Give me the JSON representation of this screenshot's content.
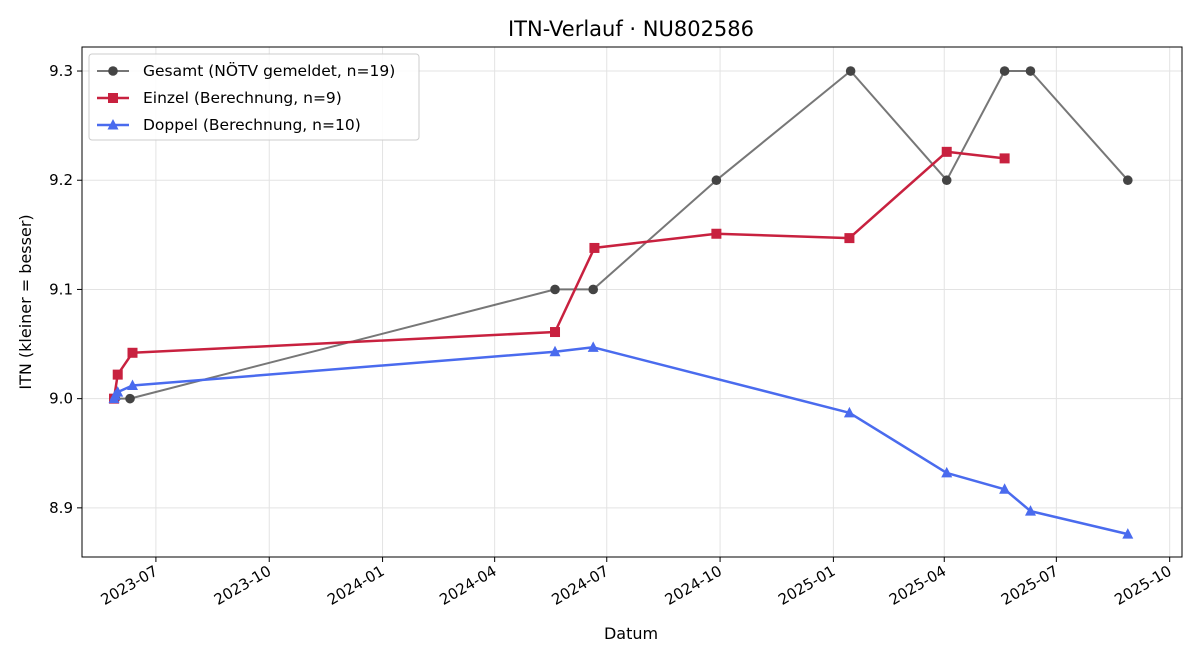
{
  "chart_data": {
    "type": "line",
    "title": "ITN-Verlauf · NU802586",
    "xlabel": "Datum",
    "ylabel": "ITN  (kleiner = besser)",
    "xlim": [
      "2023-05-02",
      "2025-10-11"
    ],
    "ylim": [
      8.855,
      9.322
    ],
    "x_ticks": [
      "2023-07",
      "2023-10",
      "2024-01",
      "2024-04",
      "2024-07",
      "2024-10",
      "2025-01",
      "2025-04",
      "2025-07",
      "2025-10"
    ],
    "y_ticks": [
      8.9,
      9.0,
      9.1,
      9.2,
      9.3
    ],
    "grid": true,
    "legend_position": "top-left",
    "series": [
      {
        "name": "Gesamt (NÖTV gemeldet, n=19)",
        "color": "#555555",
        "marker": "circle",
        "x": [
          "2023-05-28",
          "2023-05-29",
          "2023-06-10",
          "2024-05-20",
          "2024-06-20",
          "2024-09-28",
          "2025-01-15",
          "2025-04-03",
          "2025-05-20",
          "2025-06-10",
          "2025-08-28"
        ],
        "y": [
          9.0,
          9.0,
          9.0,
          9.1,
          9.1,
          9.2,
          9.3,
          9.2,
          9.3,
          9.3,
          9.2
        ]
      },
      {
        "name": "Einzel (Berechnung, n=9)",
        "color": "#c8213f",
        "marker": "square",
        "x": [
          "2023-05-28",
          "2023-05-31",
          "2023-06-12",
          "2024-05-20",
          "2024-06-21",
          "2024-09-28",
          "2025-01-14",
          "2025-04-03",
          "2025-05-20"
        ],
        "y": [
          9.0,
          9.022,
          9.042,
          9.061,
          9.138,
          9.151,
          9.147,
          9.226,
          9.22
        ]
      },
      {
        "name": "Doppel (Berechnung, n=10)",
        "color": "#4a6bee",
        "marker": "triangle",
        "x": [
          "2023-05-28",
          "2023-05-29",
          "2023-05-31",
          "2023-06-12",
          "2024-05-20",
          "2024-06-20",
          "2025-01-14",
          "2025-04-03",
          "2025-05-20",
          "2025-06-10",
          "2025-08-28"
        ],
        "y": [
          9.0,
          9.003,
          9.006,
          9.012,
          9.043,
          9.047,
          8.987,
          8.932,
          8.917,
          8.897,
          8.876
        ]
      }
    ]
  }
}
